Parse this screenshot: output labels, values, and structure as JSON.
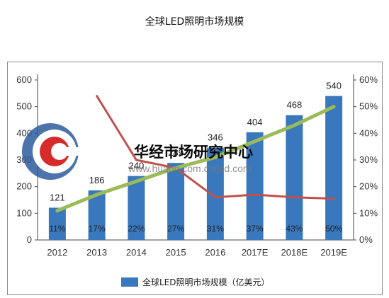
{
  "page": {
    "title": "全球LED照明市场规模"
  },
  "watermark": {
    "name": "华经市场研究中心",
    "url": "www.huaon.com.cn/jsd.com"
  },
  "colors": {
    "bar": "#3a78be",
    "line_share": "#c0504d",
    "line_growth": "#9bbb59",
    "logo_blue": "#2d5a9c",
    "logo_red": "#d62b2b"
  },
  "chart_data": {
    "type": "bar",
    "title": "",
    "categories": [
      "2012",
      "2013",
      "2014",
      "2015",
      "2016",
      "2017E",
      "2018E",
      "2019E"
    ],
    "series": [
      {
        "name": "全球LED照明市场规模（亿美元）",
        "type": "bar",
        "axis": "left",
        "values": [
          121,
          186,
          240,
          289,
          346,
          404,
          468,
          540
        ],
        "labels": [
          "121",
          "186",
          "240",
          "289",
          "346",
          "404",
          "468",
          "540"
        ]
      },
      {
        "type": "line",
        "axis": "right",
        "color": "#9bbb59",
        "values": [
          11,
          17,
          22,
          27,
          31,
          37,
          43,
          50
        ],
        "labels": [
          "11%",
          "17%",
          "22%",
          "27%",
          "31%",
          "37%",
          "43%",
          "50%"
        ]
      },
      {
        "type": "line",
        "axis": "right",
        "color": "#c0504d",
        "values": [
          null,
          54,
          30,
          27,
          16,
          17,
          16,
          15.5
        ]
      }
    ],
    "yleft": {
      "lim": [
        0,
        600
      ],
      "ticks": [
        "0",
        "100",
        "200",
        "300",
        "400",
        "500",
        "600"
      ]
    },
    "yright": {
      "lim": [
        0,
        60
      ],
      "ticks": [
        "0%",
        "10%",
        "20%",
        "30%",
        "40%",
        "50%",
        "60%"
      ]
    },
    "legend": {
      "placement": "bottom"
    },
    "grid": false
  }
}
